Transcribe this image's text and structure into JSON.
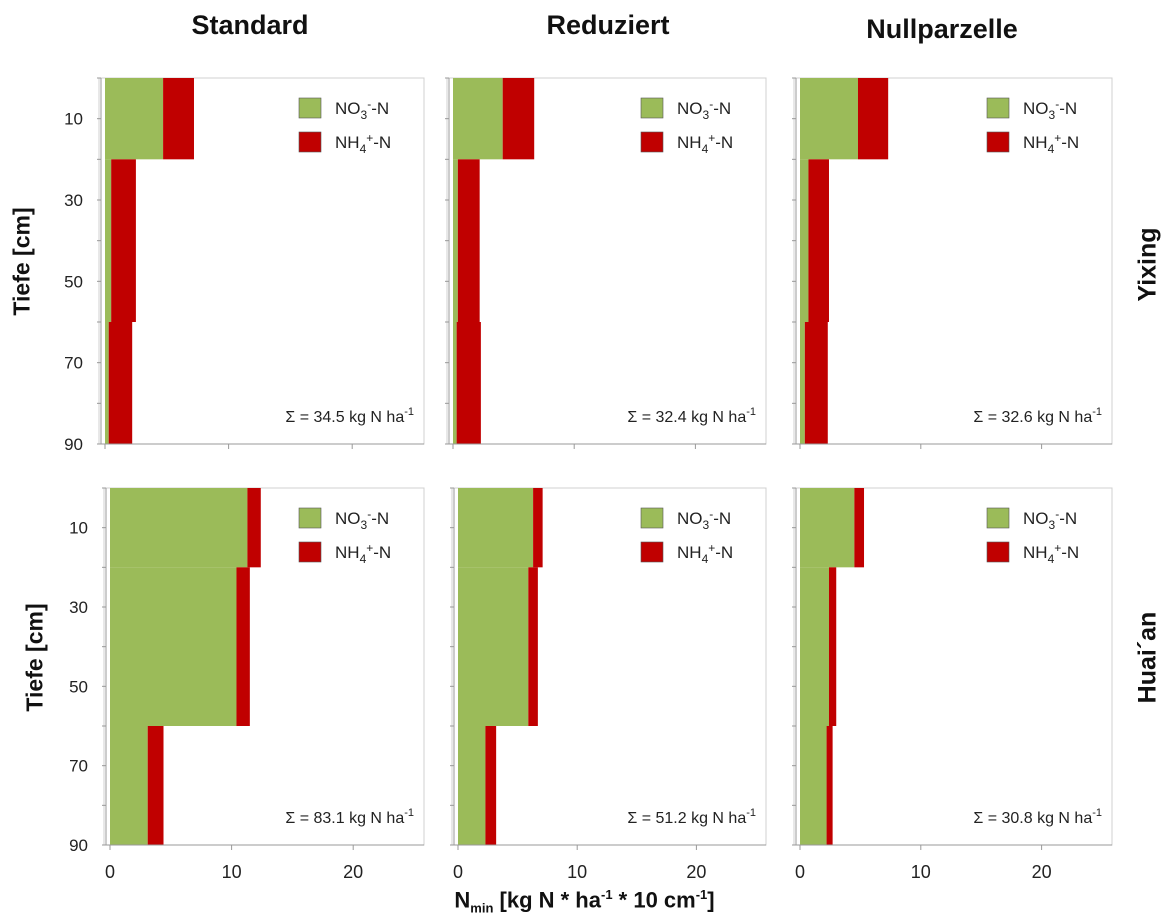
{
  "column_titles": [
    "Standard",
    "Reduziert",
    "Nullparzelle"
  ],
  "row_labels": [
    "Yixing",
    "Huai´an"
  ],
  "y_axis_label": "Tiefe [cm]",
  "x_axis_label": {
    "main": "N",
    "sub": "min",
    "rest1": " [kg N * ha",
    "sup1": "-1",
    "rest2": " * 10 cm",
    "sup2": "-1",
    "rest3": "]"
  },
  "colors": {
    "no3": "#9bbb59",
    "nh4": "#c00000"
  },
  "chart_data": [
    {
      "type": "bar",
      "orientation": "horizontal",
      "stacked": true,
      "title": "Standard",
      "row": "Yixing",
      "xlim": [
        0,
        25
      ],
      "ylim": [
        0,
        90
      ],
      "yticks": [
        10,
        30,
        50,
        70,
        90
      ],
      "xticks": [
        0,
        10,
        20
      ],
      "depth_layers": [
        [
          0,
          20
        ],
        [
          20,
          60
        ],
        [
          60,
          90
        ]
      ],
      "series": [
        {
          "name": "NO3--N",
          "values": [
            4.7,
            0.5,
            0.3
          ]
        },
        {
          "name": "NH4+-N",
          "values": [
            2.5,
            2.0,
            1.9
          ]
        }
      ],
      "annotation": "Σ = 34.5 kg N ha-1"
    },
    {
      "type": "bar",
      "orientation": "horizontal",
      "stacked": true,
      "title": "Reduziert",
      "row": "Yixing",
      "xlim": [
        0,
        25
      ],
      "ylim": [
        0,
        90
      ],
      "yticks": [
        10,
        30,
        50,
        70,
        90
      ],
      "xticks": [
        0,
        10,
        20
      ],
      "depth_layers": [
        [
          0,
          20
        ],
        [
          20,
          60
        ],
        [
          60,
          90
        ]
      ],
      "series": [
        {
          "name": "NO3--N",
          "values": [
            4.1,
            0.4,
            0.3
          ]
        },
        {
          "name": "NH4+-N",
          "values": [
            2.6,
            1.8,
            2.0
          ]
        }
      ],
      "annotation": "Σ = 32.4 kg N ha-1"
    },
    {
      "type": "bar",
      "orientation": "horizontal",
      "stacked": true,
      "title": "Nullparzelle",
      "row": "Yixing",
      "xlim": [
        0,
        25
      ],
      "ylim": [
        0,
        90
      ],
      "yticks": [
        10,
        30,
        50,
        70,
        90
      ],
      "xticks": [
        0,
        10,
        20
      ],
      "depth_layers": [
        [
          0,
          20
        ],
        [
          20,
          60
        ],
        [
          60,
          90
        ]
      ],
      "series": [
        {
          "name": "NO3--N",
          "values": [
            4.8,
            0.7,
            0.4
          ]
        },
        {
          "name": "NH4+-N",
          "values": [
            2.5,
            1.7,
            1.9
          ]
        }
      ],
      "annotation": "Σ = 32.6 kg N ha-1"
    },
    {
      "type": "bar",
      "orientation": "horizontal",
      "stacked": true,
      "title": "Standard",
      "row": "Huai´an",
      "xlim": [
        0,
        25
      ],
      "ylim": [
        0,
        90
      ],
      "yticks": [
        10,
        30,
        50,
        70,
        90
      ],
      "xticks": [
        0,
        10,
        20
      ],
      "depth_layers": [
        [
          0,
          20
        ],
        [
          20,
          60
        ],
        [
          60,
          90
        ]
      ],
      "series": [
        {
          "name": "NO3--N",
          "values": [
            11.3,
            10.4,
            3.1
          ]
        },
        {
          "name": "NH4+-N",
          "values": [
            1.1,
            1.1,
            1.3
          ]
        }
      ],
      "annotation": "Σ = 83.1 kg N ha-1"
    },
    {
      "type": "bar",
      "orientation": "horizontal",
      "stacked": true,
      "title": "Reduziert",
      "row": "Huai´an",
      "xlim": [
        0,
        25
      ],
      "ylim": [
        0,
        90
      ],
      "yticks": [
        10,
        30,
        50,
        70,
        90
      ],
      "xticks": [
        0,
        10,
        20
      ],
      "depth_layers": [
        [
          0,
          20
        ],
        [
          20,
          60
        ],
        [
          60,
          90
        ]
      ],
      "series": [
        {
          "name": "NO3--N",
          "values": [
            6.3,
            5.9,
            2.3
          ]
        },
        {
          "name": "NH4+-N",
          "values": [
            0.8,
            0.8,
            0.9
          ]
        }
      ],
      "annotation": "Σ = 51.2 kg N ha-1"
    },
    {
      "type": "bar",
      "orientation": "horizontal",
      "stacked": true,
      "title": "Nullparzelle",
      "row": "Huai´an",
      "xlim": [
        0,
        25
      ],
      "ylim": [
        0,
        90
      ],
      "yticks": [
        10,
        30,
        50,
        70,
        90
      ],
      "xticks": [
        0,
        10,
        20
      ],
      "depth_layers": [
        [
          0,
          20
        ],
        [
          20,
          60
        ],
        [
          60,
          90
        ]
      ],
      "series": [
        {
          "name": "NO3--N",
          "values": [
            4.5,
            2.4,
            2.2
          ]
        },
        {
          "name": "NH4+-N",
          "values": [
            0.8,
            0.6,
            0.5
          ]
        }
      ],
      "annotation": "Σ = 30.8 kg N ha-1"
    }
  ]
}
